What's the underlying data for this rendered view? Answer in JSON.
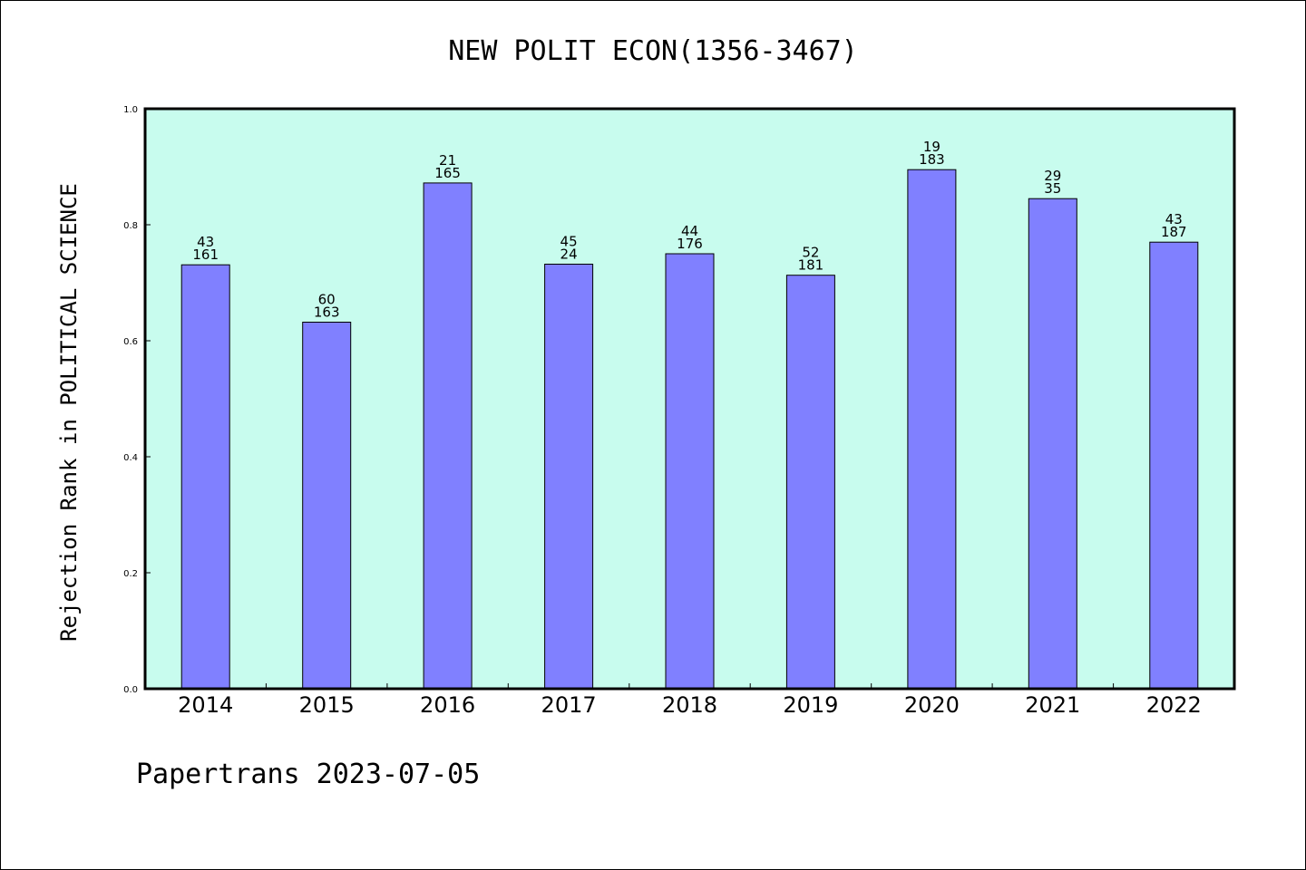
{
  "chart_data": {
    "type": "bar",
    "title": "NEW POLIT ECON(1356-3467)",
    "ylabel": "Rejection Rank in POLITICAL SCIENCE",
    "xlabel": "",
    "ylim": [
      0,
      1.0
    ],
    "yticks": [
      "0.0",
      "0.2",
      "0.4",
      "0.6",
      "0.8",
      "1.0"
    ],
    "categories": [
      "2014",
      "2015",
      "2016",
      "2017",
      "2018",
      "2019",
      "2020",
      "2021",
      "2022"
    ],
    "values": [
      0.731,
      0.632,
      0.872,
      0.732,
      0.75,
      0.713,
      0.895,
      0.845,
      0.77
    ],
    "labels_top": [
      "43",
      "60",
      "21",
      "45",
      "44",
      "52",
      "19",
      "29",
      "43"
    ],
    "labels_bottom": [
      "161",
      "163",
      "165",
      "24",
      "176",
      "181",
      "183",
      "35",
      "187"
    ],
    "grid": false,
    "colors": {
      "plot_background": "#c8fcee",
      "bar_fill": "#8080ff",
      "bar_edge": "#000000"
    }
  },
  "footer": {
    "text": "Papertrans 2023-07-05"
  }
}
